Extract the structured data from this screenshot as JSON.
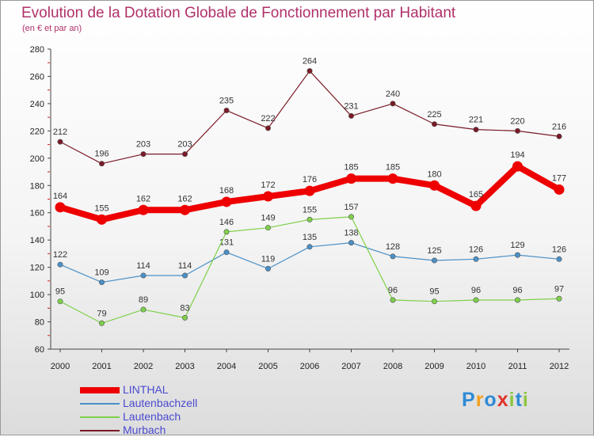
{
  "header": {
    "title": "Evolution de la Dotation Globale de Fonctionnement par Habitant",
    "subtitle": "(en € et par an)"
  },
  "logo": {
    "text": "Proxiti",
    "colors": [
      "#2e8bd6",
      "#f4a11d",
      "#2e8bd6",
      "#e0342a",
      "#8cc63f",
      "#2e8bd6",
      "#8cc63f"
    ]
  },
  "chart_data": {
    "type": "line",
    "categories": [
      "2000",
      "2001",
      "2002",
      "2003",
      "2004",
      "2005",
      "2006",
      "2007",
      "2008",
      "2009",
      "2010",
      "2011",
      "2012"
    ],
    "ylim": [
      60,
      280
    ],
    "yticks": [
      60,
      80,
      100,
      120,
      140,
      160,
      180,
      200,
      220,
      240,
      260,
      280
    ],
    "grid": false,
    "legend_position": "bottom-left",
    "series": [
      {
        "name": "Murbach",
        "color": "#7a1a26",
        "emphasis": false,
        "values": [
          212,
          196,
          203,
          203,
          235,
          222,
          264,
          231,
          240,
          225,
          221,
          220,
          216
        ]
      },
      {
        "name": "Lautenbachzell",
        "color": "#4a90c8",
        "emphasis": false,
        "values": [
          122,
          109,
          114,
          114,
          131,
          119,
          135,
          138,
          128,
          125,
          126,
          129,
          126
        ]
      },
      {
        "name": "Lautenbach",
        "color": "#7ed04a",
        "emphasis": false,
        "values": [
          95,
          79,
          89,
          83,
          146,
          149,
          155,
          157,
          96,
          95,
          96,
          96,
          97
        ]
      },
      {
        "name": "LINTHAL",
        "color": "#ee0000",
        "emphasis": true,
        "values": [
          164,
          155,
          162,
          162,
          168,
          172,
          176,
          185,
          185,
          180,
          165,
          194,
          177
        ]
      }
    ],
    "legend_order": [
      "LINTHAL",
      "Lautenbachzell",
      "Lautenbach",
      "Murbach"
    ]
  }
}
